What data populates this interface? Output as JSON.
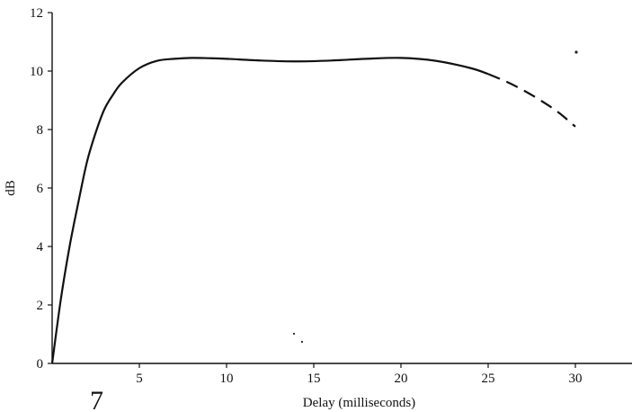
{
  "figure_number": "7",
  "chart_data": {
    "type": "line",
    "xlabel": "Delay (milliseconds)",
    "ylabel": "dB",
    "xlim": [
      0,
      34
    ],
    "ylim": [
      0,
      12
    ],
    "x_ticks": [
      5,
      10,
      15,
      20,
      25,
      30
    ],
    "y_ticks": [
      0,
      2,
      4,
      6,
      8,
      10,
      12
    ],
    "x_tick_labels": [
      "5",
      "10",
      "15",
      "20",
      "25",
      "30"
    ],
    "y_tick_labels": [
      "0",
      "2",
      "4",
      "6",
      "8",
      "10",
      "12"
    ],
    "grid": false,
    "series": [
      {
        "style": "solid",
        "x": [
          0,
          0.5,
          1,
          1.5,
          2,
          2.5,
          3,
          3.5,
          4,
          5,
          6,
          7,
          8,
          9,
          10,
          12,
          14,
          16,
          18,
          20,
          22,
          24,
          25
        ],
        "y": [
          0,
          2.2,
          4.0,
          5.5,
          6.9,
          7.9,
          8.7,
          9.2,
          9.6,
          10.1,
          10.35,
          10.42,
          10.45,
          10.44,
          10.42,
          10.36,
          10.33,
          10.36,
          10.42,
          10.45,
          10.35,
          10.1,
          9.9
        ]
      },
      {
        "style": "dashed",
        "x": [
          25,
          26,
          27,
          28,
          29,
          30
        ],
        "y": [
          9.9,
          9.65,
          9.35,
          9.0,
          8.6,
          8.1
        ]
      }
    ]
  }
}
